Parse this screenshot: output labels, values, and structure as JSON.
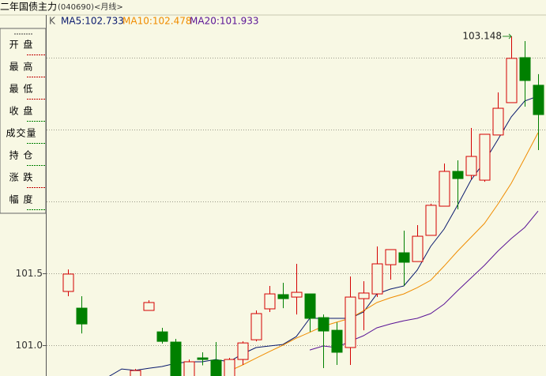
{
  "chart_data": {
    "type": "candlestick",
    "title": "二年国债主力",
    "subtitle": "(040690)<月线>",
    "ylim": [
      100.786,
      103.28
    ],
    "yticks": [
      {
        "value": 101,
        "label": "101.0"
      },
      {
        "value": 101.5,
        "label": "101.5"
      },
      {
        "value": 102,
        "label": null
      },
      {
        "value": 102.5,
        "label": null
      },
      {
        "value": 103,
        "label": null
      }
    ],
    "grid": true,
    "annotation": "103.148",
    "candles": {
      "name": "K",
      "up_color": "#d40000",
      "down_color": "#008000",
      "open": [
        101.374,
        101.258,
        null,
        null,
        null,
        100.75,
        101.242,
        101.093,
        101.022,
        100.75,
        100.912,
        100.896,
        100.77,
        100.901,
        101.038,
        101.253,
        101.352,
        101.335,
        101.357,
        101.192,
        101.104,
        100.984,
        101.324,
        101.357,
        101.56,
        101.643,
        101.582,
        101.764,
        101.967,
        102.209,
        102.181,
        102.148,
        102.462,
        102.687,
        103.0,
        102.808
      ],
      "high": [
        101.527,
        101.341,
        null,
        null,
        null,
        100.835,
        101.313,
        101.121,
        101.044,
        100.901,
        100.951,
        101.022,
        100.912,
        101.027,
        101.242,
        101.412,
        101.434,
        101.566,
        101.357,
        101.214,
        101.159,
        101.478,
        101.445,
        101.687,
        101.665,
        101.797,
        101.835,
        101.984,
        102.264,
        102.286,
        102.511,
        102.467,
        102.758,
        103.148,
        103.115,
        102.885
      ],
      "low": [
        101.341,
        101.082,
        null,
        null,
        null,
        100.7,
        101.242,
        101.011,
        100.74,
        100.7,
        100.86,
        100.75,
        100.74,
        100.863,
        101.027,
        101.231,
        101.258,
        101.214,
        101.093,
        100.841,
        100.863,
        100.863,
        101.104,
        101.335,
        101.456,
        101.412,
        101.582,
        101.764,
        101.967,
        101.945,
        102.154,
        102.137,
        102.462,
        102.687,
        102.659,
        102.357
      ],
      "close": [
        101.495,
        101.148,
        null,
        null,
        null,
        100.824,
        101.297,
        101.027,
        100.764,
        100.885,
        100.901,
        100.77,
        100.901,
        101.016,
        101.22,
        101.357,
        101.324,
        101.368,
        101.187,
        101.099,
        100.951,
        101.335,
        101.363,
        101.566,
        101.665,
        101.577,
        101.758,
        101.973,
        102.209,
        102.159,
        102.313,
        102.467,
        102.648,
        102.995,
        102.841,
        102.604
      ]
    },
    "series": [
      {
        "name": "MA5:102.733",
        "color": "#0a1a6e",
        "values": [
          null,
          null,
          null,
          100.78,
          100.835,
          100.825,
          100.84,
          100.852,
          100.874,
          100.885,
          100.885,
          100.901,
          100.885,
          100.94,
          100.984,
          100.995,
          101.005,
          101.06,
          101.187,
          101.187,
          101.187,
          101.187,
          101.231,
          101.357,
          101.39,
          101.412,
          101.522,
          101.687,
          101.808,
          101.973,
          102.148,
          102.275,
          102.429,
          102.588,
          102.698,
          102.733
        ]
      },
      {
        "name": "MA10:102.478",
        "color": "#f08c00",
        "values": [
          null,
          null,
          null,
          null,
          null,
          null,
          null,
          null,
          null,
          null,
          null,
          null,
          100.82,
          100.863,
          100.91,
          100.956,
          101.0,
          101.049,
          101.09,
          101.132,
          101.16,
          101.187,
          101.24,
          101.297,
          101.33,
          101.357,
          101.4,
          101.451,
          101.55,
          101.654,
          101.75,
          101.846,
          101.98,
          102.126,
          102.3,
          102.478
        ]
      },
      {
        "name": "MA20:101.933",
        "color": "#5a1496",
        "values": [
          null,
          null,
          null,
          null,
          null,
          null,
          null,
          null,
          null,
          null,
          null,
          null,
          null,
          null,
          null,
          null,
          null,
          null,
          100.967,
          100.995,
          100.984,
          101.027,
          101.066,
          101.121,
          101.148,
          101.17,
          101.187,
          101.22,
          101.286,
          101.379,
          101.467,
          101.555,
          101.654,
          101.742,
          101.819,
          101.933
        ]
      }
    ]
  },
  "info_panel": {
    "labels": [
      "开 盘",
      "最 高",
      "最 低",
      "收 盘",
      "成交量",
      "持 仓",
      "涨 跌",
      "幅 度"
    ]
  }
}
